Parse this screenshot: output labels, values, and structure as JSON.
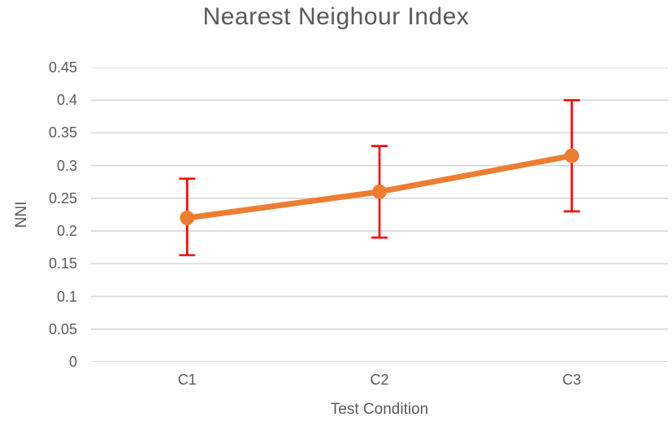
{
  "chart_data": {
    "type": "line",
    "title": "Nearest Neighour Index",
    "xlabel": "Test Condition",
    "ylabel": "NNI",
    "categories": [
      "C1",
      "C2",
      "C3"
    ],
    "series": [
      {
        "name": "NNI",
        "values": [
          0.22,
          0.26,
          0.315
        ],
        "error_low": [
          0.163,
          0.19,
          0.23
        ],
        "error_high": [
          0.28,
          0.33,
          0.4
        ]
      }
    ],
    "ylim": [
      0,
      0.45
    ],
    "ytick_step": 0.05,
    "yticks": [
      "0",
      "0.05",
      "0.1",
      "0.15",
      "0.2",
      "0.25",
      "0.3",
      "0.35",
      "0.4",
      "0.45"
    ],
    "grid": true,
    "legend": "none",
    "colors": {
      "line": "#ED7D31",
      "marker": "#ED7D31",
      "error_bar": "#FF0000",
      "gridline": "#D9D9D9",
      "text": "#595959",
      "background": "#FFFFFF"
    }
  }
}
